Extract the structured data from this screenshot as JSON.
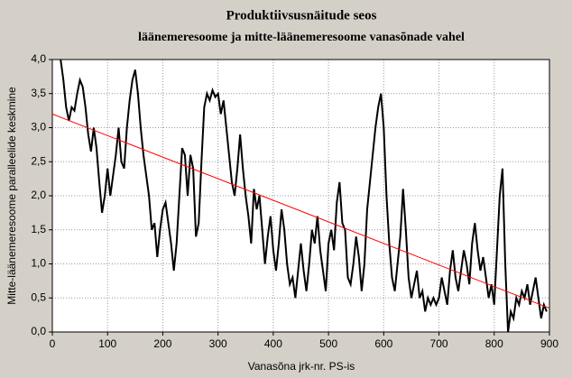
{
  "chart_data": {
    "type": "line",
    "title": "Produktiivsusnäitude seos",
    "subtitle": "läänemeresoome ja mitte-läänemeresoome vanasõnade vahel",
    "x_label": "Vanasõna jrk-nr. PS-is",
    "y_label": "Mitte-läänemeresoome paralleelide keskmine",
    "xlim": [
      0,
      900
    ],
    "ylim": [
      0,
      4
    ],
    "xticks": [
      0,
      100,
      200,
      300,
      400,
      500,
      600,
      700,
      800,
      900
    ],
    "yticks": [
      {
        "value": 0,
        "label": "0,0"
      },
      {
        "value": 0.5,
        "label": "0,5"
      },
      {
        "value": 1,
        "label": "1,0"
      },
      {
        "value": 1.5,
        "label": "1,5"
      },
      {
        "value": 2,
        "label": "2,0"
      },
      {
        "value": 2.5,
        "label": "2,5"
      },
      {
        "value": 3,
        "label": "3,0"
      },
      {
        "value": 3.5,
        "label": "3,5"
      },
      {
        "value": 4,
        "label": "4,0"
      }
    ],
    "grid": true,
    "series": [
      {
        "color": "#000000",
        "x": [
          15,
          20,
          25,
          30,
          35,
          40,
          45,
          50,
          55,
          60,
          65,
          70,
          75,
          80,
          85,
          90,
          95,
          100,
          105,
          110,
          115,
          120,
          125,
          130,
          135,
          140,
          145,
          150,
          155,
          160,
          165,
          170,
          175,
          180,
          185,
          190,
          195,
          200,
          205,
          210,
          215,
          220,
          225,
          230,
          235,
          240,
          245,
          250,
          255,
          260,
          265,
          270,
          275,
          280,
          285,
          290,
          295,
          300,
          305,
          310,
          315,
          320,
          325,
          330,
          335,
          340,
          345,
          350,
          355,
          360,
          365,
          370,
          375,
          380,
          385,
          390,
          395,
          400,
          405,
          410,
          415,
          420,
          425,
          430,
          435,
          440,
          445,
          450,
          455,
          460,
          465,
          470,
          475,
          480,
          485,
          490,
          495,
          500,
          505,
          510,
          515,
          520,
          525,
          530,
          535,
          540,
          545,
          550,
          555,
          560,
          565,
          570,
          575,
          580,
          585,
          590,
          595,
          600,
          605,
          610,
          615,
          620,
          625,
          630,
          635,
          640,
          645,
          650,
          655,
          660,
          665,
          670,
          675,
          680,
          685,
          690,
          695,
          700,
          705,
          710,
          715,
          720,
          725,
          730,
          735,
          740,
          745,
          750,
          755,
          760,
          765,
          770,
          775,
          780,
          785,
          790,
          795,
          800,
          805,
          810,
          815,
          820,
          825,
          830,
          835,
          840,
          845,
          850,
          855,
          860,
          865,
          870,
          875,
          880,
          885,
          890,
          895
        ],
        "values": [
          4.0,
          3.7,
          3.3,
          3.1,
          3.3,
          3.25,
          3.5,
          3.7,
          3.6,
          3.3,
          2.9,
          2.65,
          3.0,
          2.7,
          2.2,
          1.75,
          2.0,
          2.4,
          2.0,
          2.3,
          2.6,
          3.0,
          2.5,
          2.4,
          3.0,
          3.4,
          3.7,
          3.85,
          3.5,
          3.0,
          2.6,
          2.3,
          2.0,
          1.5,
          1.6,
          1.1,
          1.5,
          1.8,
          1.9,
          1.6,
          1.3,
          0.9,
          1.3,
          2.0,
          2.7,
          2.6,
          2.0,
          2.6,
          2.4,
          1.4,
          1.6,
          2.5,
          3.3,
          3.5,
          3.4,
          3.55,
          3.45,
          3.5,
          3.2,
          3.4,
          3.0,
          2.6,
          2.2,
          2.0,
          2.4,
          2.9,
          2.4,
          2.0,
          1.7,
          1.3,
          2.1,
          1.8,
          2.0,
          1.5,
          1.0,
          1.4,
          1.7,
          1.2,
          0.9,
          1.3,
          1.8,
          1.5,
          1.0,
          0.7,
          0.8,
          0.5,
          0.9,
          1.3,
          0.9,
          0.6,
          1.0,
          1.5,
          1.3,
          1.7,
          1.2,
          0.9,
          0.6,
          1.3,
          1.5,
          1.2,
          1.9,
          2.2,
          1.6,
          1.5,
          0.8,
          0.7,
          1.0,
          1.4,
          1.1,
          0.6,
          1.0,
          1.8,
          2.2,
          2.6,
          3.0,
          3.3,
          3.5,
          3.0,
          2.0,
          1.3,
          0.8,
          0.6,
          1.0,
          1.4,
          2.1,
          1.5,
          0.8,
          0.5,
          0.7,
          0.9,
          0.5,
          0.6,
          0.3,
          0.5,
          0.4,
          0.5,
          0.4,
          0.5,
          0.8,
          0.6,
          0.4,
          0.9,
          1.2,
          0.8,
          0.6,
          0.9,
          1.2,
          1.0,
          0.7,
          1.3,
          1.6,
          1.2,
          0.9,
          1.1,
          0.8,
          0.5,
          0.7,
          0.4,
          1.2,
          2.0,
          2.4,
          1.0,
          0.0,
          0.3,
          0.2,
          0.5,
          0.4,
          0.6,
          0.5,
          0.7,
          0.4,
          0.6,
          0.8,
          0.5,
          0.2,
          0.4,
          0.3
        ]
      },
      {
        "color": "#ff0000",
        "x": [
          0,
          900
        ],
        "values": [
          3.2,
          0.35
        ]
      }
    ]
  }
}
